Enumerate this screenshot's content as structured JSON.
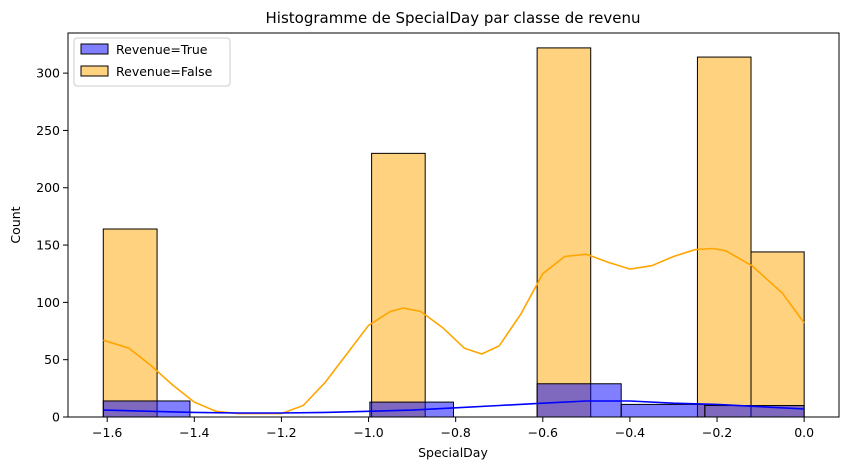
{
  "chart_data": {
    "type": "bar",
    "title": "Histogramme de SpecialDay par classe de revenu",
    "xlabel": "SpecialDay",
    "ylabel": "Count",
    "xlim": [
      -1.69,
      0.08
    ],
    "ylim": [
      0,
      335
    ],
    "xticks": [
      -1.6,
      -1.4,
      -1.2,
      -1.0,
      -0.8,
      -0.6,
      -0.4,
      -0.2,
      0.0
    ],
    "xtick_labels": [
      "−1.6",
      "−1.4",
      "−1.2",
      "−1.0",
      "−0.8",
      "−0.6",
      "−0.4",
      "−0.2",
      "0.0"
    ],
    "yticks": [
      0,
      50,
      100,
      150,
      200,
      250,
      300
    ],
    "yticks_labels": [
      "0",
      "50",
      "100",
      "150",
      "200",
      "250",
      "300"
    ],
    "legend_position": "top-left",
    "grid": false,
    "series": [
      {
        "name": "Revenue=True",
        "color": "#0000ff",
        "bins": [
          {
            "x0": -1.609,
            "x1": -1.41,
            "count": 14
          },
          {
            "x0": -0.997,
            "x1": -0.805,
            "count": 13
          },
          {
            "x0": -0.613,
            "x1": -0.42,
            "count": 29
          },
          {
            "x0": -0.42,
            "x1": -0.228,
            "count": 11
          },
          {
            "x0": -0.228,
            "x1": 0.0,
            "count": 10
          }
        ],
        "kde": [
          [
            -1.609,
            6
          ],
          [
            -1.5,
            5
          ],
          [
            -1.4,
            4
          ],
          [
            -1.3,
            3.5
          ],
          [
            -1.2,
            3.5
          ],
          [
            -1.1,
            4
          ],
          [
            -1.0,
            5
          ],
          [
            -0.9,
            6
          ],
          [
            -0.8,
            8
          ],
          [
            -0.7,
            10
          ],
          [
            -0.6,
            12
          ],
          [
            -0.5,
            14
          ],
          [
            -0.4,
            14
          ],
          [
            -0.3,
            12
          ],
          [
            -0.2,
            11
          ],
          [
            -0.1,
            9
          ],
          [
            0.0,
            7
          ]
        ]
      },
      {
        "name": "Revenue=False",
        "color": "#ffa500",
        "bins": [
          {
            "x0": -1.609,
            "x1": -1.4855,
            "count": 164
          },
          {
            "x0": -0.993,
            "x1": -0.87,
            "count": 230
          },
          {
            "x0": -0.613,
            "x1": -0.49,
            "count": 322
          },
          {
            "x0": -0.245,
            "x1": -0.122,
            "count": 314
          },
          {
            "x0": -0.122,
            "x1": 0.0,
            "count": 144
          }
        ],
        "kde": [
          [
            -1.609,
            67
          ],
          [
            -1.55,
            60
          ],
          [
            -1.5,
            45
          ],
          [
            -1.45,
            28
          ],
          [
            -1.4,
            13
          ],
          [
            -1.35,
            5
          ],
          [
            -1.3,
            3
          ],
          [
            -1.2,
            3
          ],
          [
            -1.15,
            10
          ],
          [
            -1.1,
            30
          ],
          [
            -1.05,
            55
          ],
          [
            -1.0,
            80
          ],
          [
            -0.95,
            92
          ],
          [
            -0.92,
            95
          ],
          [
            -0.88,
            92
          ],
          [
            -0.83,
            78
          ],
          [
            -0.78,
            60
          ],
          [
            -0.74,
            55
          ],
          [
            -0.7,
            62
          ],
          [
            -0.65,
            90
          ],
          [
            -0.6,
            125
          ],
          [
            -0.55,
            140
          ],
          [
            -0.5,
            142
          ],
          [
            -0.45,
            135
          ],
          [
            -0.4,
            129
          ],
          [
            -0.35,
            132
          ],
          [
            -0.3,
            140
          ],
          [
            -0.25,
            146
          ],
          [
            -0.21,
            147
          ],
          [
            -0.18,
            145
          ],
          [
            -0.12,
            132
          ],
          [
            -0.05,
            108
          ],
          [
            0.0,
            82
          ]
        ]
      }
    ]
  }
}
